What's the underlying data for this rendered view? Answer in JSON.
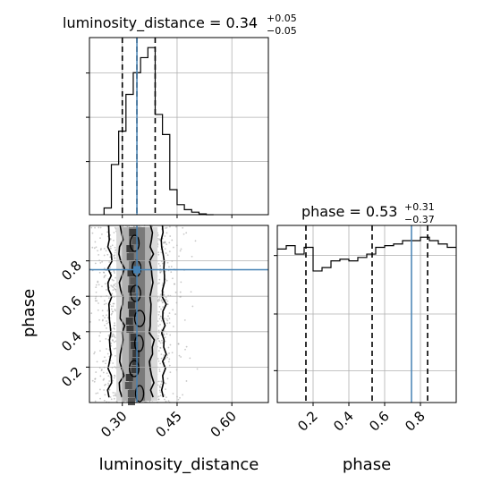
{
  "chart_data": {
    "type": "corner",
    "parameters": [
      "luminosity_distance",
      "phase"
    ],
    "truth": {
      "luminosity_distance": 0.34,
      "phase": 0.75
    },
    "truth_color": "#4682b4",
    "panels": [
      {
        "id": "ld-hist",
        "type": "histogram-step",
        "title_main": "luminosity_distance = 0.34",
        "title_sup": "+0.05",
        "title_sub": "−0.05",
        "xlim": [
          0.21,
          0.7
        ],
        "grid": true,
        "show_tick_labels": false,
        "bins": [
          0.25,
          0.27,
          0.29,
          0.31,
          0.33,
          0.35,
          0.37,
          0.39,
          0.41,
          0.43,
          0.45,
          0.47,
          0.49,
          0.51,
          0.53,
          0.55
        ],
        "counts": [
          0.04,
          0.3,
          0.5,
          0.72,
          0.85,
          0.94,
          1.0,
          0.6,
          0.48,
          0.15,
          0.06,
          0.03,
          0.015,
          0.005,
          0.0
        ],
        "quantiles": [
          0.3,
          0.34,
          0.39
        ]
      },
      {
        "id": "phase-hist",
        "type": "histogram-step",
        "title_main": "phase = 0.53",
        "title_sup": "+0.31",
        "title_sub": "−0.37",
        "xlim": [
          0.0,
          1.0
        ],
        "grid": true,
        "show_tick_labels": false,
        "bins": [
          0.0,
          0.05,
          0.1,
          0.15,
          0.2,
          0.25,
          0.3,
          0.35,
          0.4,
          0.45,
          0.5,
          0.55,
          0.6,
          0.65,
          0.7,
          0.75,
          0.8,
          0.85,
          0.9,
          0.95,
          1.0
        ],
        "counts": [
          0.91,
          0.93,
          0.88,
          0.92,
          0.78,
          0.8,
          0.84,
          0.85,
          0.84,
          0.86,
          0.88,
          0.92,
          0.93,
          0.94,
          0.96,
          0.96,
          0.98,
          0.96,
          0.94,
          0.92
        ],
        "ylim": [
          0,
          1.05
        ],
        "quantiles": [
          0.16,
          0.53,
          0.84
        ],
        "xlabel": "phase",
        "xticks": [
          0.2,
          0.4,
          0.6,
          0.8
        ]
      },
      {
        "id": "joint",
        "type": "2d-density",
        "xlim": [
          0.21,
          0.7
        ],
        "ylim": [
          0.0,
          1.0
        ],
        "xlabel": "luminosity_distance",
        "ylabel": "phase",
        "xticks": [
          0.3,
          0.45,
          0.6
        ],
        "yticks": [
          0.2,
          0.4,
          0.6,
          0.8
        ],
        "grid": true
      }
    ]
  }
}
